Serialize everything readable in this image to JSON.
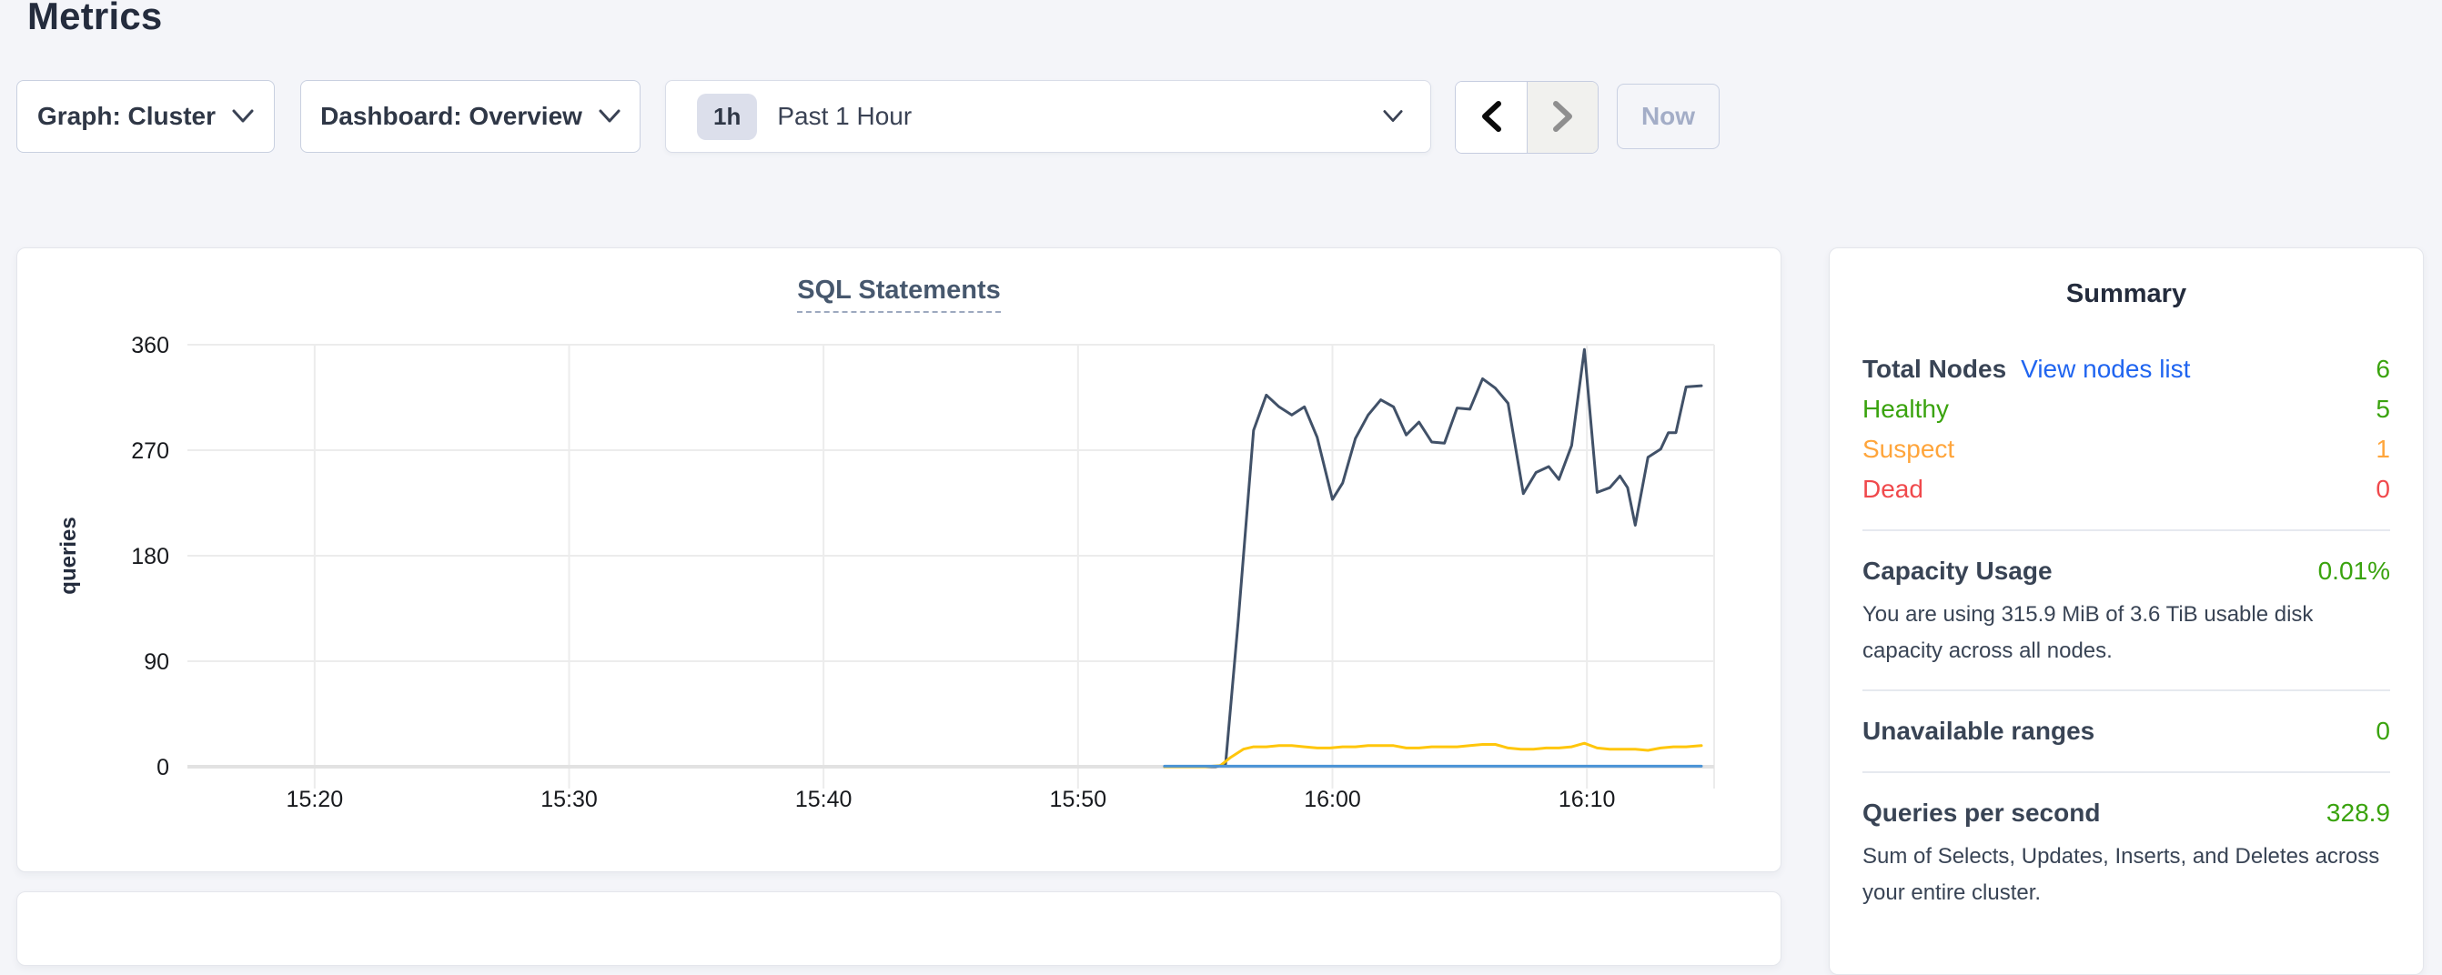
{
  "page": {
    "title": "Metrics"
  },
  "toolbar": {
    "graph_dropdown": "Graph: Cluster",
    "dashboard_dropdown": "Dashboard: Overview",
    "time_window": {
      "badge": "1h",
      "label": "Past 1 Hour"
    },
    "now_button": "Now"
  },
  "summary": {
    "title": "Summary",
    "total_nodes": {
      "label": "Total Nodes",
      "link": "View nodes list",
      "value": "6"
    },
    "healthy": {
      "label": "Healthy",
      "value": "5"
    },
    "suspect": {
      "label": "Suspect",
      "value": "1"
    },
    "dead": {
      "label": "Dead",
      "value": "0"
    },
    "capacity": {
      "label": "Capacity Usage",
      "value": "0.01%",
      "description": "You are using 315.9 MiB of 3.6 TiB usable disk capacity across all nodes."
    },
    "unavailable_ranges": {
      "label": "Unavailable ranges",
      "value": "0"
    },
    "qps": {
      "label": "Queries per second",
      "value": "328.9",
      "description": "Sum of Selects, Updates, Inserts, and Deletes across your entire cluster."
    }
  },
  "colors": {
    "page_background": "#f4f5f9",
    "heading_text": "#242c3d",
    "link_blue": "#2065f0",
    "status_green": "#3aa30e",
    "status_orange": "#ffa53b",
    "status_red": "#f0494c",
    "series_navy": "#415168",
    "series_yellow": "#ffc60b",
    "series_blue": "#4a93d6"
  },
  "chart_data": {
    "type": "line",
    "title": "SQL Statements",
    "ylabel": "queries",
    "ylim": [
      0,
      360
    ],
    "y_ticks": [
      0,
      90,
      180,
      270,
      360
    ],
    "grid": true,
    "legend_position": "none",
    "x_domain_minutes": [
      15,
      75
    ],
    "x_ticks": [
      {
        "t": 20,
        "label": "15:20"
      },
      {
        "t": 30,
        "label": "15:30"
      },
      {
        "t": 40,
        "label": "15:40"
      },
      {
        "t": 50,
        "label": "15:50"
      },
      {
        "t": 60,
        "label": "16:00"
      },
      {
        "t": 70,
        "label": "16:10"
      }
    ],
    "series": [
      {
        "name": "navy",
        "color": "#415168",
        "points": [
          [
            53.4,
            0
          ],
          [
            54.0,
            0
          ],
          [
            54.5,
            0
          ],
          [
            55.0,
            0
          ],
          [
            55.4,
            0
          ],
          [
            55.8,
            2
          ],
          [
            56.3,
            125
          ],
          [
            56.9,
            287
          ],
          [
            57.4,
            317
          ],
          [
            57.9,
            307
          ],
          [
            58.4,
            300
          ],
          [
            58.9,
            307
          ],
          [
            59.4,
            281
          ],
          [
            60.0,
            228
          ],
          [
            60.4,
            242
          ],
          [
            60.9,
            280
          ],
          [
            61.4,
            300
          ],
          [
            61.9,
            313
          ],
          [
            62.4,
            307
          ],
          [
            62.9,
            283
          ],
          [
            63.4,
            294
          ],
          [
            63.9,
            277
          ],
          [
            64.4,
            276
          ],
          [
            64.9,
            306
          ],
          [
            65.4,
            305
          ],
          [
            65.9,
            331
          ],
          [
            66.4,
            323
          ],
          [
            66.9,
            310
          ],
          [
            67.5,
            233
          ],
          [
            68.0,
            251
          ],
          [
            68.5,
            256
          ],
          [
            68.9,
            245
          ],
          [
            69.4,
            274
          ],
          [
            69.9,
            356
          ],
          [
            70.4,
            234
          ],
          [
            70.9,
            238
          ],
          [
            71.3,
            248
          ],
          [
            71.6,
            238
          ],
          [
            71.9,
            206
          ],
          [
            72.4,
            264
          ],
          [
            72.9,
            271
          ],
          [
            73.2,
            285
          ],
          [
            73.5,
            285
          ],
          [
            73.9,
            324
          ],
          [
            74.5,
            325
          ]
        ]
      },
      {
        "name": "yellow",
        "color": "#ffc60b",
        "points": [
          [
            53.4,
            0
          ],
          [
            54.2,
            0
          ],
          [
            55.0,
            0
          ],
          [
            55.6,
            1
          ],
          [
            56.0,
            8
          ],
          [
            56.5,
            15
          ],
          [
            56.9,
            17
          ],
          [
            57.4,
            17
          ],
          [
            57.9,
            18
          ],
          [
            58.4,
            18
          ],
          [
            58.9,
            17
          ],
          [
            59.4,
            16
          ],
          [
            59.9,
            16
          ],
          [
            60.4,
            17
          ],
          [
            60.9,
            17
          ],
          [
            61.4,
            18
          ],
          [
            61.9,
            18
          ],
          [
            62.4,
            18
          ],
          [
            62.9,
            16
          ],
          [
            63.4,
            16
          ],
          [
            63.9,
            17
          ],
          [
            64.4,
            17
          ],
          [
            64.9,
            17
          ],
          [
            65.4,
            18
          ],
          [
            65.9,
            19
          ],
          [
            66.4,
            19
          ],
          [
            66.9,
            16
          ],
          [
            67.4,
            15
          ],
          [
            67.9,
            15
          ],
          [
            68.4,
            16
          ],
          [
            68.9,
            16
          ],
          [
            69.4,
            17
          ],
          [
            69.9,
            20
          ],
          [
            70.4,
            16
          ],
          [
            70.9,
            15
          ],
          [
            71.4,
            15
          ],
          [
            71.9,
            15
          ],
          [
            72.4,
            14
          ],
          [
            72.9,
            16
          ],
          [
            73.4,
            17
          ],
          [
            73.9,
            17
          ],
          [
            74.5,
            18
          ]
        ]
      },
      {
        "name": "blue",
        "color": "#4a93d6",
        "points": [
          [
            53.4,
            0.5
          ],
          [
            58.0,
            0.5
          ],
          [
            63.0,
            0.5
          ],
          [
            68.0,
            0.5
          ],
          [
            74.5,
            0.5
          ]
        ]
      }
    ]
  }
}
